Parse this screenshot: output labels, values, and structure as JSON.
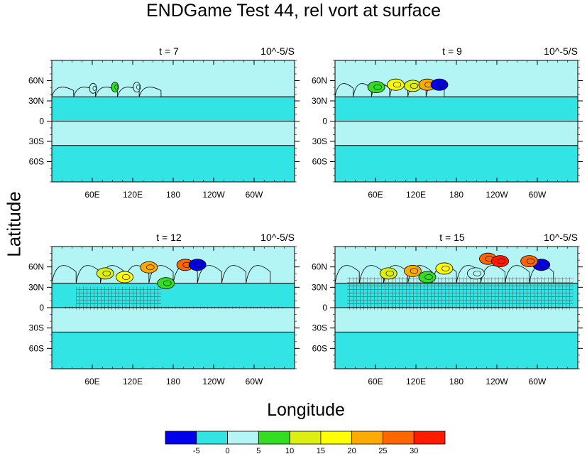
{
  "title": "ENDGame Test 44, rel vort at surface",
  "ylabel": "Latitude",
  "xlabel": "Longitude",
  "colors": {
    "background_band": "#b3f4f4",
    "negative_band": "#33e4e4",
    "contour_line": "#000000"
  },
  "chart_data": [
    {
      "type": "heatmap",
      "left_label": "t = 7",
      "right_label": "10^-5/S",
      "x_ticks": [
        "60E",
        "120E",
        "180",
        "120W",
        "60W"
      ],
      "y_ticks": [
        "60N",
        "30N",
        "0",
        "30S",
        "60S"
      ],
      "x_tick_values": [
        60,
        120,
        180,
        240,
        300
      ],
      "y_tick_values": [
        60,
        30,
        0,
        -30,
        -60
      ],
      "xlim": [
        0,
        360
      ],
      "ylim": [
        -90,
        90
      ],
      "zones": [
        {
          "from": -90,
          "to": -36,
          "level": "-5 to 0"
        },
        {
          "from": -36,
          "to": 0,
          "level": "0 to 5"
        },
        {
          "from": 0,
          "to": 36,
          "level": "-5 to 0"
        },
        {
          "from": 36,
          "to": 90,
          "level": "0 to 5"
        }
      ],
      "activity": "small wave crests near 35N, 0-160E"
    },
    {
      "type": "heatmap",
      "left_label": "t = 9",
      "right_label": "10^-5/S",
      "x_ticks": [
        "60E",
        "120E",
        "180",
        "120W",
        "60W"
      ],
      "y_ticks": [
        "60N",
        "30N",
        "0",
        "30S",
        "60S"
      ],
      "x_tick_values": [
        60,
        120,
        180,
        240,
        300
      ],
      "y_tick_values": [
        60,
        30,
        0,
        -30,
        -60
      ],
      "xlim": [
        0,
        360
      ],
      "ylim": [
        -90,
        90
      ],
      "zones": [
        {
          "from": -90,
          "to": -36,
          "level": "-5 to 0"
        },
        {
          "from": -36,
          "to": 0,
          "level": "0 to 5"
        },
        {
          "from": 0,
          "to": 36,
          "level": "-5 to 0"
        },
        {
          "from": 36,
          "to": 90,
          "level": "0 to 5"
        }
      ],
      "activity": "breaking waves near 45N, 0-180E, peaks up to 30"
    },
    {
      "type": "heatmap",
      "left_label": "t = 12",
      "right_label": "10^-5/S",
      "x_ticks": [
        "60E",
        "120E",
        "180",
        "120W",
        "60W"
      ],
      "y_ticks": [
        "60N",
        "30N",
        "0",
        "30S",
        "60S"
      ],
      "x_tick_values": [
        60,
        120,
        180,
        240,
        300
      ],
      "y_tick_values": [
        60,
        30,
        0,
        -30,
        -60
      ],
      "xlim": [
        0,
        360
      ],
      "ylim": [
        -90,
        90
      ],
      "zones": [
        {
          "from": -90,
          "to": -36,
          "level": "-5 to 0"
        },
        {
          "from": -36,
          "to": 0,
          "level": "0 to 5"
        },
        {
          "from": 0,
          "to": 36,
          "level": "-5 to 0"
        },
        {
          "from": 36,
          "to": 90,
          "level": "0 to 5"
        }
      ],
      "activity": "vortex roll-up near 60N, 0-220E, noise near equator"
    },
    {
      "type": "heatmap",
      "left_label": "t = 15",
      "right_label": "10^-5/S",
      "x_ticks": [
        "60E",
        "120E",
        "180",
        "120W",
        "60W"
      ],
      "y_ticks": [
        "60N",
        "30N",
        "0",
        "30S",
        "60S"
      ],
      "x_tick_values": [
        60,
        120,
        180,
        240,
        300
      ],
      "y_tick_values": [
        60,
        30,
        0,
        -30,
        -60
      ],
      "xlim": [
        0,
        360
      ],
      "ylim": [
        -90,
        90
      ],
      "zones": [
        {
          "from": -90,
          "to": -36,
          "level": "-5 to 0"
        },
        {
          "from": -36,
          "to": 0,
          "level": "0 to 5"
        },
        {
          "from": 0,
          "to": 36,
          "level": "-5 to 0"
        },
        {
          "from": 36,
          "to": 90,
          "level": "0 to 5"
        }
      ],
      "activity": "turbulent vortices 20N-80N across the domain, strong noise 0-30N"
    }
  ],
  "colorbar": {
    "colors": [
      "#0000ee",
      "#33e4e4",
      "#b3f4f4",
      "#33dd22",
      "#ddee11",
      "#ffff00",
      "#ffaa00",
      "#ff6600",
      "#ff1a00"
    ],
    "labels": [
      "-5",
      "0",
      "5",
      "10",
      "15",
      "20",
      "25",
      "30"
    ]
  }
}
